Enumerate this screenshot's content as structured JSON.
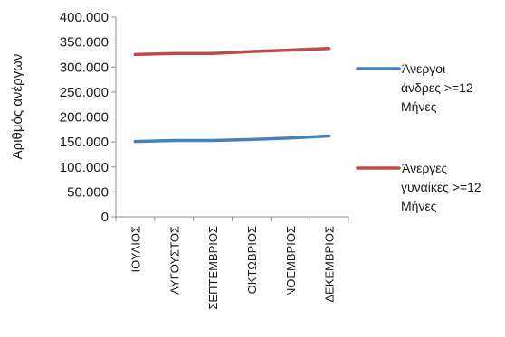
{
  "chart_data": {
    "type": "line",
    "title": "",
    "xlabel": "",
    "ylabel": "Αριθμός ανέργων",
    "categories": [
      "ΙΟΥΛΙΟΣ",
      "ΑΥΓΟΥΣΤΟΣ",
      "ΣΕΠΤΕΜΒΡΙΟΣ",
      "ΟΚΤΩΒΡΙΟΣ",
      "ΝΟΕΜΒΡΙΟΣ",
      "ΔΕΚΕΜΒΡΙΟΣ"
    ],
    "ylim": [
      0,
      400000
    ],
    "yticks": [
      0,
      50000,
      100000,
      150000,
      200000,
      250000,
      300000,
      350000,
      400000
    ],
    "ytick_labels": [
      "0",
      "50.000",
      "100.000",
      "150.000",
      "200.000",
      "250.000",
      "300.000",
      "350.000",
      "400.000"
    ],
    "grid": false,
    "legend_position": "right",
    "series": [
      {
        "name": "Άνεργοι άνδρες >=12 Μήνες",
        "name_lines": [
          "Άνεργοι",
          "άνδρες >=12",
          "Μήνες"
        ],
        "color": "#4a7ebb",
        "values": [
          151000,
          153000,
          153000,
          155000,
          158000,
          162000
        ]
      },
      {
        "name": "Άνεργες γυναίκες >=12 Μήνες",
        "name_lines": [
          "Άνεργες",
          "γυναίκες >=12",
          "Μήνες"
        ],
        "color": "#be4b48",
        "values": [
          325000,
          327000,
          327000,
          331000,
          334000,
          337000
        ]
      }
    ]
  }
}
